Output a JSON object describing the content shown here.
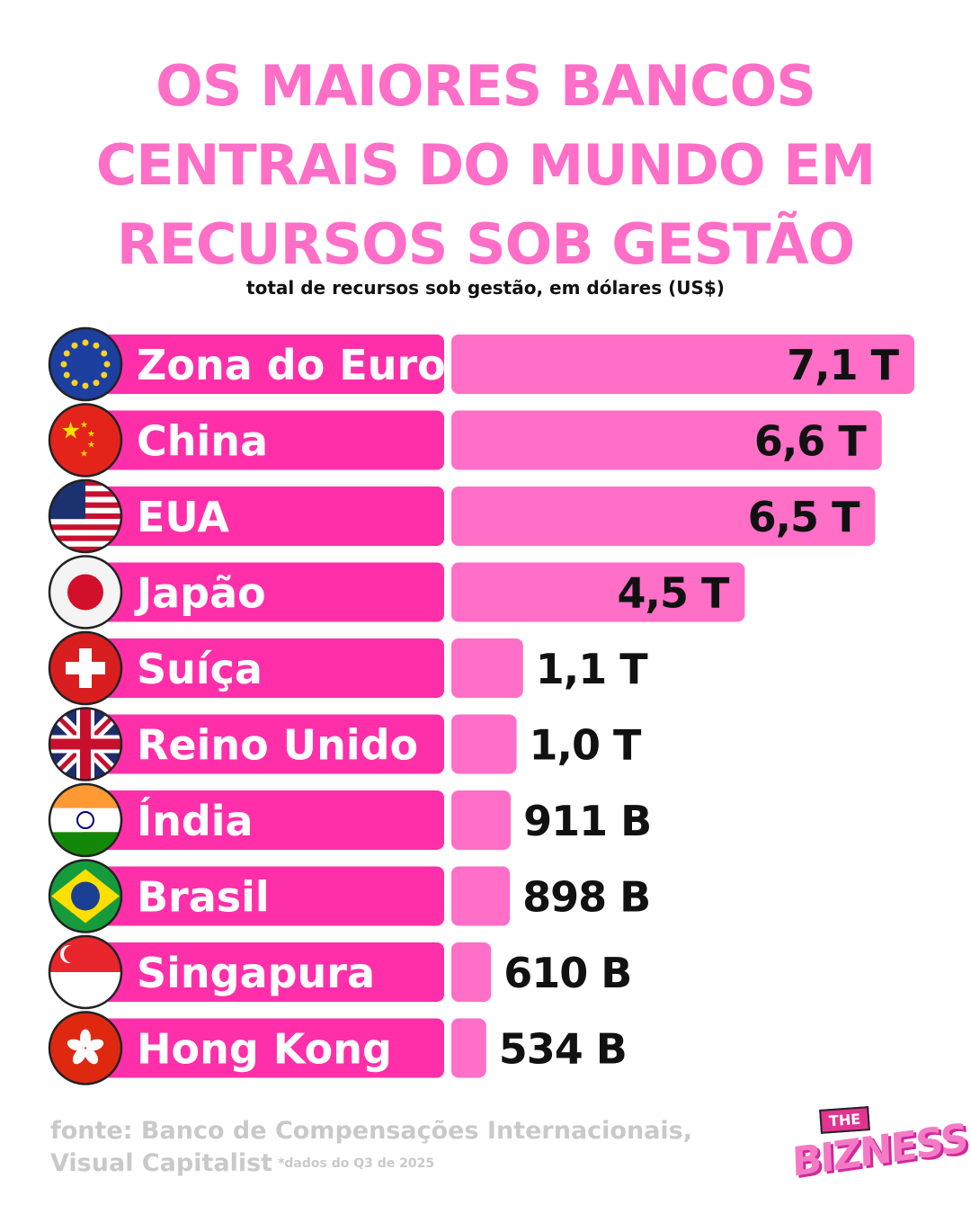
{
  "title_lines": [
    "OS MAIORES BANCOS",
    "CENTRAIS DO MUNDO EM",
    "RECURSOS SOB GESTÃO"
  ],
  "subtitle": "total de recursos sob gestão, em dólares (US$)",
  "source_lines": [
    "fonte: Banco de Compensações Internacionais,",
    "Visual Capitalist"
  ],
  "source_note": "*dados do Q3 de 2025",
  "logo": {
    "the": "THE",
    "name": "BIZNESS"
  },
  "colors": {
    "title": "#ff6ec7",
    "label_bar": "#ff2fa9",
    "value_bar": "#ff6ec7",
    "text": "#111111"
  },
  "chart_data": {
    "type": "bar",
    "orientation": "horizontal",
    "unit": "US$",
    "categories": [
      "Zona do Euro",
      "China",
      "EUA",
      "Japão",
      "Suíça",
      "Reino Unido",
      "Índia",
      "Brasil",
      "Singapura",
      "Hong Kong"
    ],
    "values": [
      7100,
      6600,
      6500,
      4500,
      1100,
      1000,
      911,
      898,
      610,
      534
    ],
    "value_unit": "billions of US$",
    "value_labels": [
      "7,1 T",
      "6,6 T",
      "6,5 T",
      "4,5 T",
      "1,1 T",
      "1,0 T",
      "911 B",
      "898 B",
      "610 B",
      "534 B"
    ],
    "flags": [
      "eu-flag-icon",
      "china-flag-icon",
      "usa-flag-icon",
      "japan-flag-icon",
      "switzerland-flag-icon",
      "uk-flag-icon",
      "india-flag-icon",
      "brazil-flag-icon",
      "singapore-flag-icon",
      "hong-kong-flag-icon"
    ],
    "value_labels_inside": [
      true,
      true,
      true,
      true,
      false,
      false,
      false,
      false,
      false,
      false
    ]
  }
}
